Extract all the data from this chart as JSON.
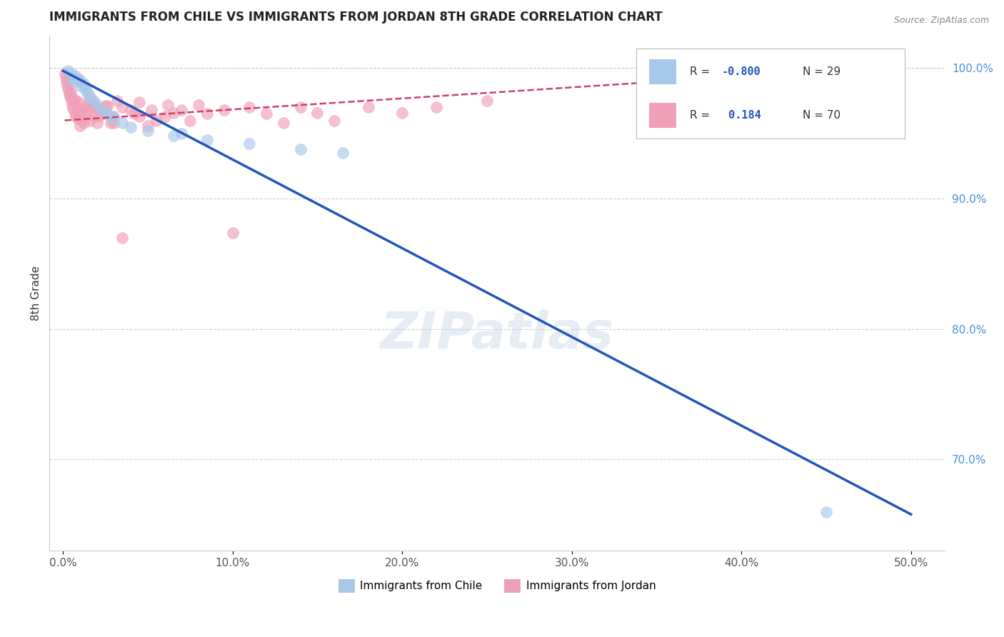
{
  "title": "IMMIGRANTS FROM CHILE VS IMMIGRANTS FROM JORDAN 8TH GRADE CORRELATION CHART",
  "source": "Source: ZipAtlas.com",
  "ylabel": "8th Grade",
  "x_tick_labels": [
    "0.0%",
    "10.0%",
    "20.0%",
    "30.0%",
    "40.0%",
    "50.0%"
  ],
  "x_tick_vals": [
    0,
    10,
    20,
    30,
    40,
    50
  ],
  "y_tick_vals": [
    1.0,
    0.9,
    0.8,
    0.7
  ],
  "y_tick_labels": [
    "100.0%",
    "90.0%",
    "80.0%",
    "70.0%"
  ],
  "xlim": [
    -0.8,
    52
  ],
  "ylim": [
    0.63,
    1.025
  ],
  "legend_r_chile": "-0.800",
  "legend_n_chile": "29",
  "legend_r_jordan": "0.184",
  "legend_n_jordan": "70",
  "chile_color": "#a8c8e8",
  "jordan_color": "#f0a0b8",
  "chile_line_color": "#2255bb",
  "jordan_line_color": "#d04060",
  "watermark": "ZIPatlas",
  "background_color": "#ffffff",
  "grid_color": "#cccccc",
  "chile_scatter_x": [
    0.3,
    0.5,
    0.7,
    0.9,
    1.0,
    1.2,
    1.3,
    1.4,
    1.6,
    1.8,
    2.0,
    2.3,
    2.6,
    3.0,
    3.5,
    4.0,
    5.0,
    6.5,
    8.5,
    11.0,
    14.0,
    16.5,
    45.0,
    0.6,
    0.8,
    1.1,
    1.5,
    2.8,
    7.0
  ],
  "chile_scatter_y": [
    0.998,
    0.996,
    0.994,
    0.992,
    0.99,
    0.988,
    0.985,
    0.982,
    0.978,
    0.975,
    0.972,
    0.968,
    0.965,
    0.962,
    0.958,
    0.955,
    0.952,
    0.948,
    0.945,
    0.942,
    0.938,
    0.935,
    0.66,
    0.991,
    0.99,
    0.986,
    0.98,
    0.963,
    0.95
  ],
  "jordan_scatter_x": [
    0.1,
    0.15,
    0.2,
    0.25,
    0.3,
    0.35,
    0.4,
    0.45,
    0.5,
    0.55,
    0.6,
    0.65,
    0.7,
    0.75,
    0.8,
    0.85,
    0.9,
    0.95,
    1.0,
    1.1,
    1.2,
    1.3,
    1.4,
    1.5,
    1.6,
    1.7,
    1.8,
    1.9,
    2.0,
    2.2,
    2.4,
    2.6,
    2.8,
    3.0,
    3.5,
    4.0,
    4.5,
    5.0,
    6.0,
    7.0,
    8.0,
    3.0,
    3.5,
    4.5,
    5.5,
    6.5,
    7.5,
    8.5,
    9.5,
    10.0,
    11.0,
    12.0,
    13.0,
    14.0,
    15.0,
    16.0,
    18.0,
    20.0,
    22.0,
    25.0,
    0.4,
    0.7,
    1.1,
    1.6,
    2.1,
    2.5,
    3.2,
    4.2,
    5.2,
    6.2
  ],
  "jordan_scatter_y": [
    0.996,
    0.993,
    0.99,
    0.987,
    0.984,
    0.981,
    0.978,
    0.982,
    0.975,
    0.972,
    0.969,
    0.976,
    0.966,
    0.963,
    0.97,
    0.967,
    0.961,
    0.974,
    0.956,
    0.962,
    0.958,
    0.965,
    0.971,
    0.968,
    0.96,
    0.974,
    0.963,
    0.97,
    0.958,
    0.969,
    0.965,
    0.971,
    0.958,
    0.963,
    0.97,
    0.968,
    0.974,
    0.956,
    0.963,
    0.968,
    0.972,
    0.958,
    0.87,
    0.963,
    0.96,
    0.966,
    0.96,
    0.965,
    0.968,
    0.874,
    0.97,
    0.965,
    0.958,
    0.97,
    0.966,
    0.96,
    0.97,
    0.966,
    0.97,
    0.975,
    0.98,
    0.975,
    0.968,
    0.974,
    0.963,
    0.971,
    0.975,
    0.965,
    0.968,
    0.972
  ],
  "chile_line_x0": 0.0,
  "chile_line_y0": 0.998,
  "chile_line_x1": 50.0,
  "chile_line_y1": 0.658,
  "jordan_line_x0": 0.1,
  "jordan_line_y0": 0.96,
  "jordan_line_x1": 45.0,
  "jordan_line_y1": 0.998
}
